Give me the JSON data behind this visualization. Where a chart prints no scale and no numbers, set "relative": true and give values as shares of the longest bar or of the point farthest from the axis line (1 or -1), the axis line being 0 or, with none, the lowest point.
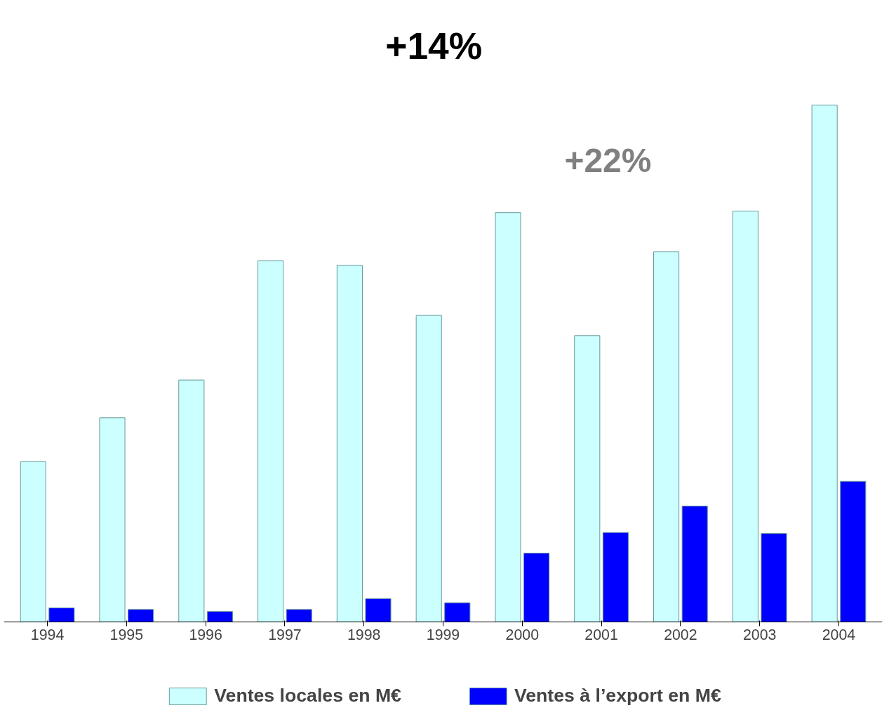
{
  "chart_data": {
    "type": "bar",
    "relative": true,
    "categories": [
      "1994",
      "1995",
      "1996",
      "1997",
      "1998",
      "1999",
      "2000",
      "2001",
      "2002",
      "2003",
      "2004"
    ],
    "series": [
      {
        "name": "Ventes locales en M€",
        "color": "#ccffff",
        "values": [
          0.31,
          0.395,
          0.468,
          0.699,
          0.69,
          0.593,
          0.792,
          0.554,
          0.716,
          0.795,
          1.0
        ]
      },
      {
        "name": "Ventes à l’export en M€",
        "color": "#0000ff",
        "values": [
          0.027,
          0.024,
          0.02,
          0.024,
          0.045,
          0.037,
          0.133,
          0.173,
          0.224,
          0.171,
          0.272
        ]
      }
    ],
    "annotations": [
      "+14%",
      "+22%"
    ],
    "legend": "bottom",
    "grid": false
  }
}
